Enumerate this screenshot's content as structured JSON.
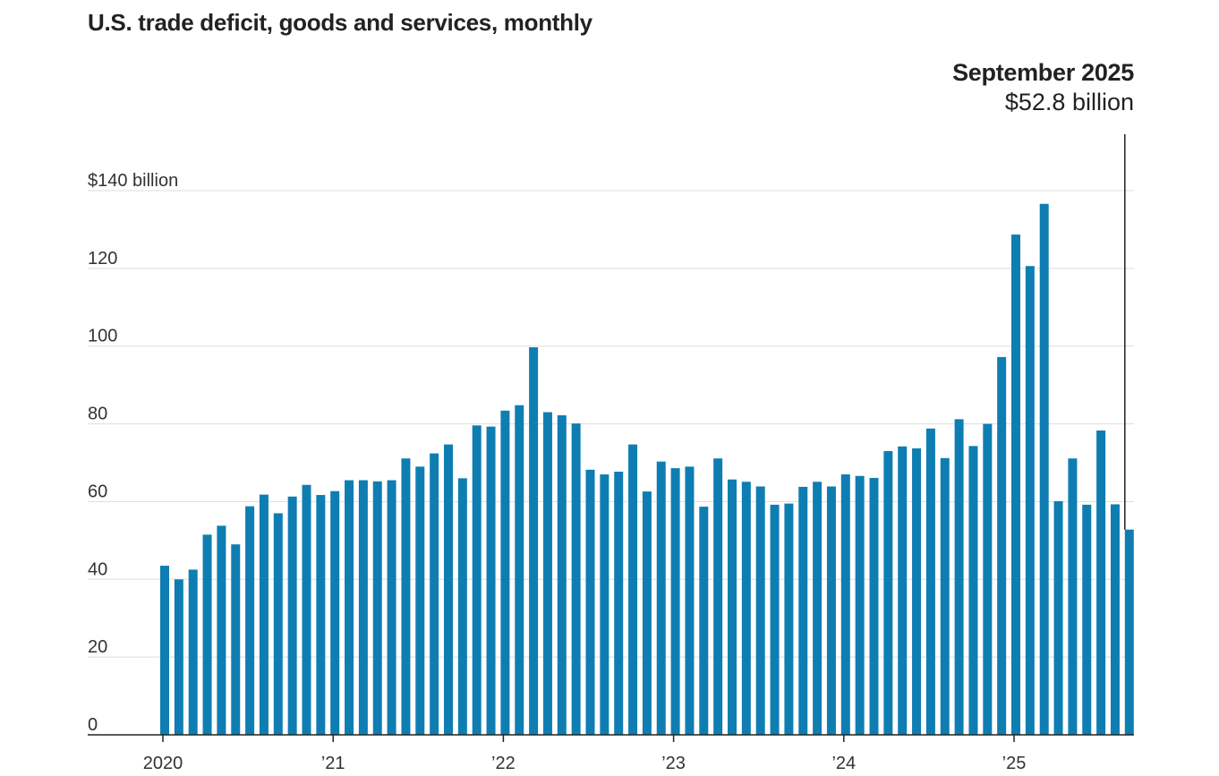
{
  "chart_data": {
    "type": "bar",
    "title": "U.S. trade deficit, goods and services, monthly",
    "unit_label": "$140 billion",
    "y_ticks": [
      0,
      20,
      40,
      60,
      80,
      100,
      120,
      140
    ],
    "y_tick_labels": [
      "0",
      "20",
      "40",
      "60",
      "80",
      "100",
      "120",
      "$140 billion"
    ],
    "ylim": [
      0,
      140
    ],
    "x_tick_labels": [
      "2020",
      "’21",
      "’22",
      "’23",
      "’24",
      "’25"
    ],
    "x_tick_month_index": [
      0,
      12,
      24,
      36,
      48,
      60
    ],
    "start": "January 2020",
    "end": "September 2025",
    "values": [
      43.5,
      40.0,
      42.5,
      51.5,
      53.8,
      49.0,
      58.8,
      61.8,
      57.0,
      61.3,
      64.3,
      61.7,
      62.7,
      65.5,
      65.5,
      65.2,
      65.5,
      71.1,
      69.0,
      72.4,
      74.7,
      66.0,
      79.6,
      79.3,
      83.4,
      84.8,
      99.7,
      83.0,
      82.2,
      80.1,
      68.2,
      67.0,
      67.7,
      74.7,
      62.6,
      70.3,
      68.6,
      69.0,
      58.7,
      71.1,
      65.7,
      65.1,
      63.9,
      59.2,
      59.5,
      63.8,
      65.1,
      63.9,
      67.0,
      66.6,
      66.1,
      73.0,
      74.2,
      73.7,
      78.8,
      71.2,
      81.2,
      74.3,
      80.0,
      97.2,
      128.7,
      120.6,
      136.6,
      60.1,
      71.1,
      59.2,
      78.3,
      59.3,
      52.8
    ],
    "bar_color": "#0E7EB2",
    "callout": {
      "label": "September 2025",
      "value": "$52.8 billion"
    }
  }
}
